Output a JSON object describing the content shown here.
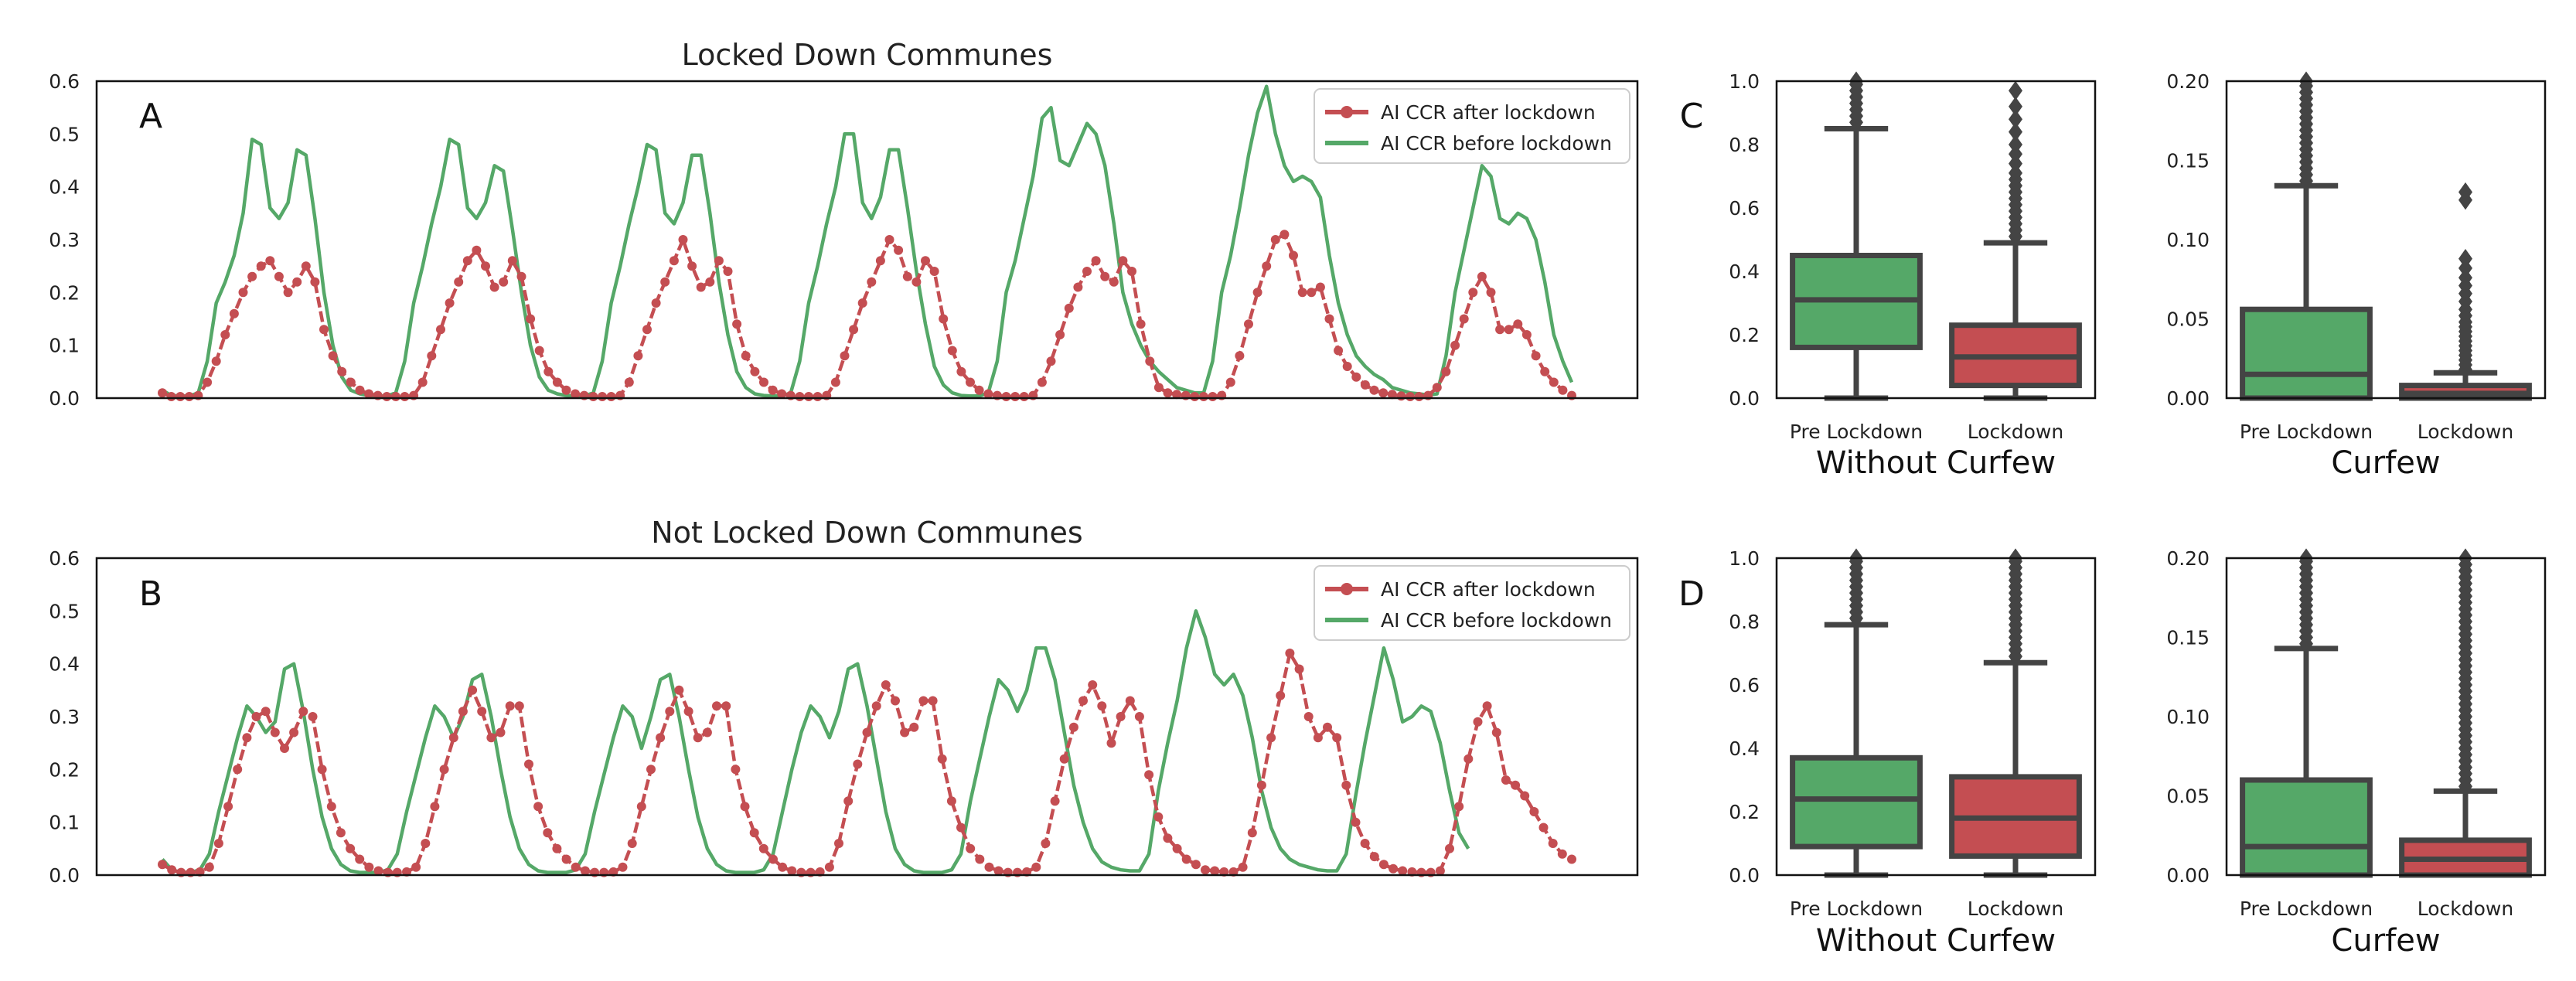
{
  "colors": {
    "after": "#c44e52",
    "before": "#55a868",
    "box_edge": "#444444",
    "frame": "#111111"
  },
  "chart_data": [
    {
      "id": "A",
      "type": "line",
      "panel_letter": "A",
      "title": "Locked Down Communes",
      "xlabel": "",
      "ylabel": "",
      "ylim": [
        0,
        0.6
      ],
      "yticks": [
        "0.0",
        "0.1",
        "0.2",
        "0.3",
        "0.4",
        "0.5",
        "0.6"
      ],
      "legend": {
        "location": "upper right",
        "entries": [
          "AI CCR after lockdown",
          "AI CCR before lockdown"
        ]
      },
      "series": [
        {
          "name": "AI CCR after lockdown",
          "color": "#c44e52",
          "markers": true,
          "values": [
            0.01,
            0.003,
            0.003,
            0.003,
            0.005,
            0.03,
            0.07,
            0.12,
            0.16,
            0.2,
            0.23,
            0.25,
            0.26,
            0.23,
            0.2,
            0.22,
            0.25,
            0.22,
            0.13,
            0.08,
            0.05,
            0.03,
            0.015,
            0.008,
            0.005,
            0.003,
            0.003,
            0.003,
            0.005,
            0.03,
            0.08,
            0.13,
            0.18,
            0.22,
            0.26,
            0.28,
            0.25,
            0.21,
            0.22,
            0.26,
            0.23,
            0.15,
            0.09,
            0.05,
            0.03,
            0.015,
            0.008,
            0.005,
            0.003,
            0.003,
            0.003,
            0.005,
            0.03,
            0.08,
            0.13,
            0.18,
            0.22,
            0.26,
            0.3,
            0.25,
            0.21,
            0.22,
            0.26,
            0.24,
            0.14,
            0.08,
            0.05,
            0.03,
            0.015,
            0.008,
            0.005,
            0.003,
            0.003,
            0.003,
            0.005,
            0.03,
            0.08,
            0.13,
            0.18,
            0.22,
            0.26,
            0.3,
            0.28,
            0.23,
            0.22,
            0.26,
            0.24,
            0.15,
            0.09,
            0.05,
            0.03,
            0.015,
            0.008,
            0.005,
            0.003,
            0.003,
            0.003,
            0.005,
            0.03,
            0.07,
            0.12,
            0.17,
            0.21,
            0.24,
            0.26,
            0.23,
            0.22,
            0.26,
            0.24,
            0.14,
            0.07,
            0.02,
            0.01,
            0.007,
            0.005,
            0.003,
            0.003,
            0.003,
            0.005,
            0.03,
            0.08,
            0.14,
            0.2,
            0.25,
            0.3,
            0.31,
            0.27,
            0.2,
            0.2,
            0.21,
            0.15,
            0.09,
            0.06,
            0.04,
            0.025,
            0.015,
            0.01,
            0.007,
            0.004,
            0.003,
            0.003,
            0.005,
            0.02,
            0.05,
            0.1,
            0.15,
            0.2,
            0.23,
            0.2,
            0.13,
            0.13,
            0.14,
            0.12,
            0.08,
            0.05,
            0.03,
            0.015,
            0.005
          ]
        },
        {
          "name": "AI CCR before lockdown",
          "color": "#55a868",
          "markers": false,
          "values": [
            0.015,
            0.005,
            0.004,
            0.004,
            0.01,
            0.07,
            0.18,
            0.22,
            0.27,
            0.35,
            0.49,
            0.48,
            0.36,
            0.34,
            0.37,
            0.47,
            0.46,
            0.34,
            0.2,
            0.1,
            0.04,
            0.015,
            0.008,
            0.005,
            0.004,
            0.004,
            0.01,
            0.07,
            0.18,
            0.25,
            0.33,
            0.4,
            0.49,
            0.48,
            0.36,
            0.34,
            0.37,
            0.44,
            0.43,
            0.32,
            0.2,
            0.1,
            0.04,
            0.015,
            0.008,
            0.005,
            0.004,
            0.004,
            0.01,
            0.07,
            0.18,
            0.25,
            0.33,
            0.4,
            0.48,
            0.47,
            0.35,
            0.33,
            0.37,
            0.46,
            0.46,
            0.35,
            0.22,
            0.12,
            0.05,
            0.02,
            0.008,
            0.005,
            0.004,
            0.004,
            0.01,
            0.07,
            0.18,
            0.25,
            0.33,
            0.4,
            0.5,
            0.5,
            0.37,
            0.34,
            0.38,
            0.47,
            0.47,
            0.36,
            0.24,
            0.14,
            0.06,
            0.025,
            0.01,
            0.005,
            0.004,
            0.004,
            0.01,
            0.07,
            0.2,
            0.26,
            0.34,
            0.42,
            0.53,
            0.55,
            0.45,
            0.44,
            0.48,
            0.52,
            0.5,
            0.44,
            0.33,
            0.2,
            0.14,
            0.1,
            0.07,
            0.05,
            0.035,
            0.02,
            0.015,
            0.01,
            0.01,
            0.07,
            0.2,
            0.27,
            0.36,
            0.46,
            0.54,
            0.59,
            0.5,
            0.44,
            0.41,
            0.42,
            0.41,
            0.38,
            0.27,
            0.18,
            0.12,
            0.08,
            0.06,
            0.045,
            0.035,
            0.02,
            0.015,
            0.01,
            0.008,
            0.006,
            0.008,
            0.08,
            0.2,
            0.28,
            0.36,
            0.44,
            0.42,
            0.34,
            0.33,
            0.35,
            0.34,
            0.3,
            0.22,
            0.12,
            0.07,
            0.03
          ]
        }
      ]
    },
    {
      "id": "B",
      "type": "line",
      "panel_letter": "B",
      "title": "Not Locked Down Communes",
      "xlabel": "",
      "ylabel": "",
      "ylim": [
        0,
        0.6
      ],
      "yticks": [
        "0.0",
        "0.1",
        "0.2",
        "0.3",
        "0.4",
        "0.5",
        "0.6"
      ],
      "legend": {
        "location": "upper right",
        "entries": [
          "AI CCR after lockdown",
          "AI CCR before lockdown"
        ]
      },
      "series": [
        {
          "name": "AI CCR after lockdown",
          "color": "#c44e52",
          "markers": true,
          "values": [
            0.02,
            0.01,
            0.005,
            0.005,
            0.006,
            0.015,
            0.06,
            0.13,
            0.2,
            0.26,
            0.3,
            0.31,
            0.27,
            0.24,
            0.27,
            0.31,
            0.3,
            0.2,
            0.13,
            0.08,
            0.05,
            0.03,
            0.015,
            0.008,
            0.005,
            0.005,
            0.006,
            0.015,
            0.06,
            0.13,
            0.2,
            0.26,
            0.31,
            0.35,
            0.31,
            0.26,
            0.27,
            0.32,
            0.32,
            0.21,
            0.13,
            0.08,
            0.05,
            0.03,
            0.015,
            0.008,
            0.005,
            0.005,
            0.006,
            0.015,
            0.06,
            0.13,
            0.2,
            0.26,
            0.31,
            0.35,
            0.31,
            0.26,
            0.27,
            0.32,
            0.32,
            0.2,
            0.13,
            0.08,
            0.05,
            0.03,
            0.015,
            0.008,
            0.005,
            0.005,
            0.006,
            0.015,
            0.06,
            0.14,
            0.21,
            0.27,
            0.32,
            0.36,
            0.33,
            0.27,
            0.28,
            0.33,
            0.33,
            0.22,
            0.14,
            0.09,
            0.05,
            0.03,
            0.015,
            0.008,
            0.005,
            0.005,
            0.006,
            0.015,
            0.06,
            0.14,
            0.22,
            0.28,
            0.33,
            0.36,
            0.32,
            0.25,
            0.3,
            0.33,
            0.3,
            0.19,
            0.11,
            0.07,
            0.05,
            0.03,
            0.02,
            0.01,
            0.008,
            0.006,
            0.006,
            0.015,
            0.08,
            0.17,
            0.26,
            0.34,
            0.42,
            0.39,
            0.3,
            0.26,
            0.28,
            0.26,
            0.17,
            0.1,
            0.06,
            0.035,
            0.02,
            0.012,
            0.008,
            0.006,
            0.005,
            0.005,
            0.008,
            0.05,
            0.13,
            0.22,
            0.29,
            0.32,
            0.27,
            0.18,
            0.17,
            0.15,
            0.12,
            0.09,
            0.06,
            0.04,
            0.03
          ]
        },
        {
          "name": "AI CCR before lockdown",
          "color": "#55a868",
          "markers": false,
          "values": [
            0.03,
            0.01,
            0.005,
            0.005,
            0.01,
            0.04,
            0.12,
            0.19,
            0.26,
            0.32,
            0.3,
            0.27,
            0.29,
            0.39,
            0.4,
            0.31,
            0.2,
            0.11,
            0.05,
            0.02,
            0.008,
            0.005,
            0.005,
            0.005,
            0.01,
            0.04,
            0.12,
            0.19,
            0.26,
            0.32,
            0.3,
            0.26,
            0.3,
            0.37,
            0.38,
            0.3,
            0.2,
            0.11,
            0.05,
            0.02,
            0.008,
            0.005,
            0.005,
            0.005,
            0.01,
            0.04,
            0.12,
            0.19,
            0.26,
            0.32,
            0.3,
            0.24,
            0.3,
            0.37,
            0.38,
            0.3,
            0.2,
            0.11,
            0.05,
            0.02,
            0.008,
            0.005,
            0.005,
            0.005,
            0.01,
            0.04,
            0.12,
            0.2,
            0.27,
            0.32,
            0.3,
            0.26,
            0.31,
            0.39,
            0.4,
            0.32,
            0.22,
            0.12,
            0.05,
            0.02,
            0.008,
            0.005,
            0.005,
            0.005,
            0.01,
            0.04,
            0.14,
            0.22,
            0.3,
            0.37,
            0.35,
            0.31,
            0.35,
            0.43,
            0.43,
            0.37,
            0.27,
            0.17,
            0.1,
            0.05,
            0.025,
            0.015,
            0.01,
            0.008,
            0.008,
            0.04,
            0.16,
            0.25,
            0.33,
            0.43,
            0.5,
            0.45,
            0.38,
            0.36,
            0.38,
            0.34,
            0.26,
            0.16,
            0.09,
            0.05,
            0.03,
            0.02,
            0.015,
            0.01,
            0.008,
            0.008,
            0.04,
            0.15,
            0.25,
            0.34,
            0.43,
            0.37,
            0.29,
            0.3,
            0.32,
            0.31,
            0.25,
            0.16,
            0.08,
            0.05
          ]
        }
      ]
    },
    {
      "id": "C_without",
      "type": "box",
      "panel_letter": "C",
      "xlabel": "Without Curfew",
      "ylim": [
        0,
        1.0
      ],
      "yticks": [
        "0.0",
        "0.2",
        "0.4",
        "0.6",
        "0.8",
        "1.0"
      ],
      "categories": [
        "Pre Lockdown",
        "Lockdown"
      ],
      "boxes": [
        {
          "label": "Pre Lockdown",
          "color": "#55a868",
          "whislo": 0.0,
          "q1": 0.16,
          "med": 0.31,
          "q3": 0.45,
          "whishi": 0.85,
          "fliers": [
            0.87,
            0.89,
            0.91,
            0.93,
            0.95,
            0.97,
            0.99,
            1.0
          ]
        },
        {
          "label": "Lockdown",
          "color": "#c44e52",
          "whislo": 0.0,
          "q1": 0.04,
          "med": 0.13,
          "q3": 0.23,
          "whishi": 0.49,
          "fliers": [
            0.51,
            0.53,
            0.55,
            0.57,
            0.59,
            0.61,
            0.63,
            0.65,
            0.67,
            0.69,
            0.71,
            0.74,
            0.77,
            0.8,
            0.84,
            0.88,
            0.92,
            0.97
          ]
        }
      ]
    },
    {
      "id": "C_curfew",
      "type": "box",
      "panel_letter": "",
      "xlabel": "Curfew",
      "ylim": [
        0,
        0.2
      ],
      "yticks": [
        "0.00",
        "0.05",
        "0.10",
        "0.15",
        "0.20"
      ],
      "categories": [
        "Pre Lockdown",
        "Lockdown"
      ],
      "boxes": [
        {
          "label": "Pre Lockdown",
          "color": "#55a868",
          "whislo": 0.0,
          "q1": 0.0,
          "med": 0.015,
          "q3": 0.056,
          "whishi": 0.134,
          "fliers": [
            0.137,
            0.141,
            0.145,
            0.149,
            0.153,
            0.157,
            0.161,
            0.165,
            0.169,
            0.173,
            0.177,
            0.181,
            0.185,
            0.189,
            0.193,
            0.197,
            0.2
          ]
        },
        {
          "label": "Lockdown",
          "color": "#c44e52",
          "whislo": 0.0,
          "q1": 0.0,
          "med": 0.003,
          "q3": 0.008,
          "whishi": 0.016,
          "fliers": [
            0.018,
            0.021,
            0.024,
            0.027,
            0.03,
            0.033,
            0.036,
            0.039,
            0.042,
            0.045,
            0.048,
            0.052,
            0.056,
            0.061,
            0.066,
            0.071,
            0.076,
            0.082,
            0.088,
            0.125,
            0.13
          ]
        }
      ]
    },
    {
      "id": "D_without",
      "type": "box",
      "panel_letter": "D",
      "xlabel": "Without Curfew",
      "ylim": [
        0,
        1.0
      ],
      "yticks": [
        "0.0",
        "0.2",
        "0.4",
        "0.6",
        "0.8",
        "1.0"
      ],
      "categories": [
        "Pre Lockdown",
        "Lockdown"
      ],
      "boxes": [
        {
          "label": "Pre Lockdown",
          "color": "#55a868",
          "whislo": 0.0,
          "q1": 0.09,
          "med": 0.24,
          "q3": 0.37,
          "whishi": 0.79,
          "fliers": [
            0.81,
            0.83,
            0.85,
            0.87,
            0.89,
            0.91,
            0.93,
            0.95,
            0.97,
            0.99,
            1.0
          ]
        },
        {
          "label": "Lockdown",
          "color": "#c44e52",
          "whislo": 0.0,
          "q1": 0.06,
          "med": 0.18,
          "q3": 0.31,
          "whishi": 0.67,
          "fliers": [
            0.69,
            0.71,
            0.73,
            0.75,
            0.77,
            0.79,
            0.81,
            0.83,
            0.85,
            0.87,
            0.89,
            0.91,
            0.93,
            0.95,
            0.97,
            0.99,
            1.0
          ]
        }
      ]
    },
    {
      "id": "D_curfew",
      "type": "box",
      "panel_letter": "",
      "xlabel": "Curfew",
      "ylim": [
        0,
        0.2
      ],
      "yticks": [
        "0.00",
        "0.05",
        "0.10",
        "0.15",
        "0.20"
      ],
      "categories": [
        "Pre Lockdown",
        "Lockdown"
      ],
      "boxes": [
        {
          "label": "Pre Lockdown",
          "color": "#55a868",
          "whislo": 0.0,
          "q1": 0.0,
          "med": 0.018,
          "q3": 0.06,
          "whishi": 0.143,
          "fliers": [
            0.146,
            0.15,
            0.154,
            0.158,
            0.162,
            0.166,
            0.17,
            0.174,
            0.178,
            0.182,
            0.186,
            0.19,
            0.194,
            0.198,
            0.2
          ]
        },
        {
          "label": "Lockdown",
          "color": "#c44e52",
          "whislo": 0.0,
          "q1": 0.0,
          "med": 0.01,
          "q3": 0.022,
          "whishi": 0.053,
          "fliers": [
            0.056,
            0.06,
            0.064,
            0.068,
            0.072,
            0.076,
            0.08,
            0.084,
            0.088,
            0.092,
            0.096,
            0.1,
            0.104,
            0.108,
            0.112,
            0.116,
            0.12,
            0.124,
            0.128,
            0.132,
            0.136,
            0.14,
            0.144,
            0.148,
            0.152,
            0.156,
            0.16,
            0.164,
            0.168,
            0.172,
            0.176,
            0.18,
            0.184,
            0.188,
            0.192,
            0.196,
            0.2
          ]
        }
      ]
    }
  ]
}
